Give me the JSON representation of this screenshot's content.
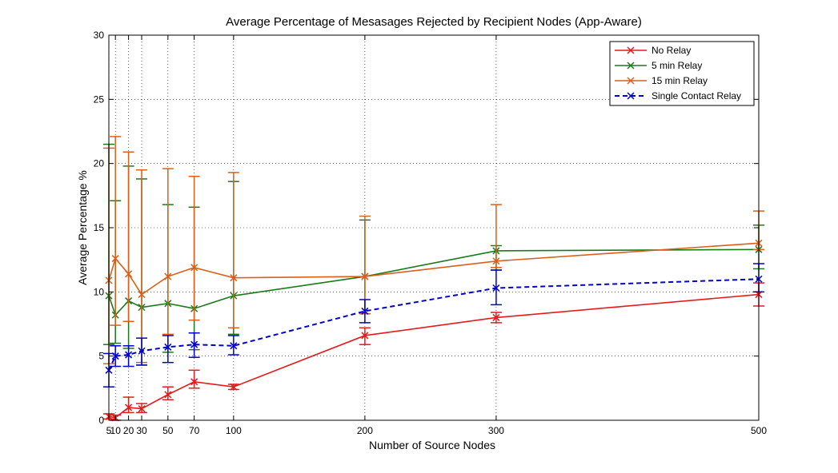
{
  "chart_data": {
    "type": "line",
    "title": "Average Percentage of Mesasages Rejected by Recipient Nodes (App-Aware)",
    "xlabel": "Number of Source Nodes",
    "ylabel": "Average Percentage %",
    "xlim": [
      5,
      500
    ],
    "ylim": [
      0,
      30
    ],
    "xticks": [
      5,
      10,
      20,
      30,
      50,
      70,
      100,
      200,
      300,
      500
    ],
    "xtick_labels": [
      "5",
      "10",
      "20",
      "30",
      "50",
      "70",
      "100",
      "200",
      "300",
      "500"
    ],
    "yticks": [
      0,
      5,
      10,
      15,
      20,
      25,
      30
    ],
    "ytick_labels": [
      "0",
      "5",
      "10",
      "15",
      "20",
      "25",
      "30"
    ],
    "grid": true,
    "legend_position": "top-right",
    "x": [
      5,
      10,
      20,
      30,
      50,
      70,
      100,
      200,
      300,
      500
    ],
    "series": [
      {
        "name": "No Relay",
        "color": "#e41a1c",
        "dashed": false,
        "values": [
          0.3,
          0.2,
          1.0,
          0.9,
          2.0,
          3.0,
          2.6,
          6.6,
          8.0,
          9.8
        ],
        "err_low": [
          0.1,
          0.0,
          0.6,
          0.6,
          1.6,
          2.5,
          2.4,
          5.9,
          7.6,
          8.9
        ],
        "err_high": [
          0.5,
          0.4,
          1.8,
          1.3,
          2.6,
          3.9,
          2.8,
          7.2,
          8.4,
          10.7
        ]
      },
      {
        "name": "5 min Relay",
        "color": "#1a7a1a",
        "dashed": false,
        "values": [
          9.7,
          8.2,
          9.3,
          8.8,
          9.1,
          8.7,
          9.7,
          11.2,
          13.2,
          13.3
        ],
        "err_low": [
          5.9,
          6.0,
          5.6,
          4.3,
          5.3,
          5.5,
          6.7,
          8.3,
          11.7,
          11.8
        ],
        "err_high": [
          21.5,
          17.1,
          19.8,
          18.8,
          16.8,
          16.6,
          18.6,
          15.6,
          13.6,
          15.2
        ]
      },
      {
        "name": "15 min Relay",
        "color": "#d95f1a",
        "dashed": false,
        "values": [
          10.9,
          12.6,
          11.4,
          9.8,
          11.2,
          11.9,
          11.1,
          11.2,
          12.4,
          13.8
        ],
        "err_low": [
          4.4,
          7.4,
          7.7,
          4.5,
          6.7,
          7.8,
          7.2,
          8.3,
          11.9,
          13.3
        ],
        "err_high": [
          21.2,
          22.1,
          20.9,
          19.5,
          19.6,
          19.0,
          19.3,
          15.9,
          16.8,
          16.3
        ]
      },
      {
        "name": "Single Contact Relay",
        "color": "#0000cc",
        "dashed": true,
        "values": [
          3.9,
          5.0,
          5.1,
          5.4,
          5.7,
          5.9,
          5.8,
          8.5,
          10.3,
          11.0
        ],
        "err_low": [
          2.6,
          4.2,
          4.2,
          4.3,
          4.5,
          4.9,
          5.1,
          7.6,
          9.0,
          10.0
        ],
        "err_high": [
          5.2,
          5.8,
          5.8,
          6.4,
          6.6,
          6.8,
          6.6,
          9.4,
          11.7,
          12.2
        ]
      }
    ]
  }
}
